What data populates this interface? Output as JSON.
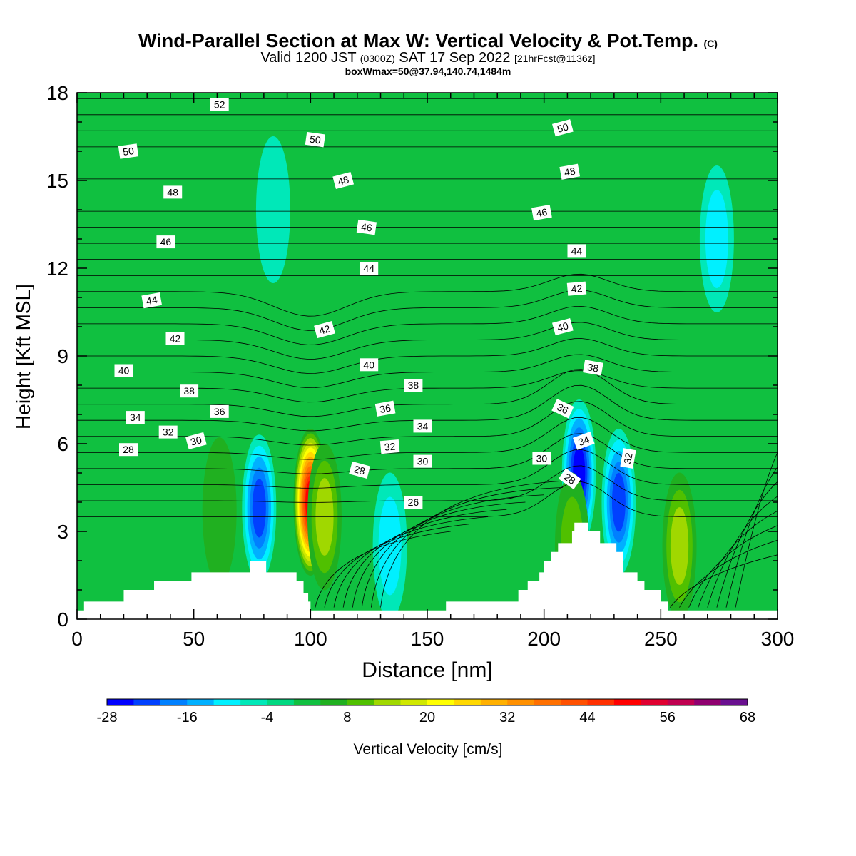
{
  "title": {
    "main": "Wind-Parallel Section at Max W: Vertical Velocity & Pot.Temp.",
    "copyright": "(C)",
    "valid_prefix": "Valid 1200 JST",
    "valid_utc": "(0300Z)",
    "valid_date": "SAT 17 Sep 2022",
    "forecast": "[21hrFcst@1136z]",
    "box_info": "boxWmax=50@37.94,140.74,1484m"
  },
  "chart_data": {
    "type": "contour",
    "xlabel": "Distance [nm]",
    "ylabel": "Height [Kft MSL]",
    "xlim": [
      0,
      300
    ],
    "ylim": [
      0,
      18
    ],
    "x_ticks": [
      0,
      50,
      100,
      150,
      200,
      250,
      300
    ],
    "y_ticks": [
      0,
      3,
      6,
      9,
      12,
      15,
      18
    ],
    "colorbar": {
      "label": "Vertical Velocity [cm/s]",
      "tick_labels": [
        "-28",
        "-16",
        "-4",
        "8",
        "20",
        "32",
        "44",
        "56",
        "68"
      ],
      "levels": [
        -28,
        -24,
        -20,
        -16,
        -12,
        -8,
        -4,
        0,
        4,
        8,
        12,
        16,
        20,
        24,
        28,
        32,
        36,
        40,
        44,
        48,
        52,
        56,
        60,
        64,
        68
      ],
      "colors": [
        "#0000ff",
        "#0040ff",
        "#0080ff",
        "#00b0ff",
        "#00f0ff",
        "#00e8b8",
        "#00d880",
        "#10c040",
        "#20b020",
        "#50c000",
        "#a0d800",
        "#d0e800",
        "#ffff00",
        "#ffd800",
        "#ffb000",
        "#ff9000",
        "#ff7000",
        "#ff5000",
        "#ff3000",
        "#ff0000",
        "#e00030",
        "#c00050",
        "#900070",
        "#6a1090"
      ]
    },
    "background_velocity_cm_s": 0,
    "velocity_features": [
      {
        "x": 78,
        "y": 3.8,
        "w": -20
      },
      {
        "x": 100,
        "y": 4.0,
        "w": 50
      },
      {
        "x": 106,
        "y": 3.5,
        "w": 12
      },
      {
        "x": 61,
        "y": 3.7,
        "w": 6
      },
      {
        "x": 134,
        "y": 2.5,
        "w": -8
      },
      {
        "x": 215,
        "y": 5.0,
        "w": -24
      },
      {
        "x": 232,
        "y": 4.0,
        "w": -20
      },
      {
        "x": 212,
        "y": 2.5,
        "w": 8
      },
      {
        "x": 258,
        "y": 2.5,
        "w": 12
      },
      {
        "x": 274,
        "y": 13.0,
        "w": -8
      },
      {
        "x": 84,
        "y": 14.0,
        "w": -6
      }
    ],
    "terrain_kft": [
      {
        "x": 0,
        "h": 0.3
      },
      {
        "x": 3,
        "h": 0.6
      },
      {
        "x": 19,
        "h": 0.6
      },
      {
        "x": 20,
        "h": 1.0
      },
      {
        "x": 32,
        "h": 1.0
      },
      {
        "x": 33,
        "h": 1.3
      },
      {
        "x": 48,
        "h": 1.3
      },
      {
        "x": 49,
        "h": 1.6
      },
      {
        "x": 73,
        "h": 1.6
      },
      {
        "x": 74,
        "h": 2.0
      },
      {
        "x": 80,
        "h": 2.0
      },
      {
        "x": 81,
        "h": 1.6
      },
      {
        "x": 93,
        "h": 1.6
      },
      {
        "x": 94,
        "h": 1.3
      },
      {
        "x": 97,
        "h": 0.9
      },
      {
        "x": 99,
        "h": 0.6
      },
      {
        "x": 100,
        "h": 0.3
      },
      {
        "x": 157,
        "h": 0.3
      },
      {
        "x": 158,
        "h": 0.6
      },
      {
        "x": 188,
        "h": 0.6
      },
      {
        "x": 189,
        "h": 1.0
      },
      {
        "x": 192,
        "h": 1.0
      },
      {
        "x": 193,
        "h": 1.3
      },
      {
        "x": 198,
        "h": 1.6
      },
      {
        "x": 200,
        "h": 2.0
      },
      {
        "x": 203,
        "h": 2.3
      },
      {
        "x": 206,
        "h": 2.6
      },
      {
        "x": 212,
        "h": 3.0
      },
      {
        "x": 213,
        "h": 3.3
      },
      {
        "x": 218,
        "h": 3.3
      },
      {
        "x": 219,
        "h": 3.0
      },
      {
        "x": 224,
        "h": 2.6
      },
      {
        "x": 230,
        "h": 2.6
      },
      {
        "x": 231,
        "h": 2.3
      },
      {
        "x": 234,
        "h": 1.6
      },
      {
        "x": 240,
        "h": 1.3
      },
      {
        "x": 243,
        "h": 1.0
      },
      {
        "x": 250,
        "h": 0.6
      },
      {
        "x": 253,
        "h": 0.3
      },
      {
        "x": 300,
        "h": 0.3
      }
    ],
    "theta_contour_labels": [
      {
        "v": 52,
        "x": 61,
        "y": 17.6,
        "a": 0
      },
      {
        "v": 50,
        "x": 22,
        "y": 16.0,
        "a": -8
      },
      {
        "v": 50,
        "x": 102,
        "y": 16.4,
        "a": 8
      },
      {
        "v": 50,
        "x": 208,
        "y": 16.8,
        "a": -15
      },
      {
        "v": 48,
        "x": 41,
        "y": 14.6,
        "a": 0
      },
      {
        "v": 48,
        "x": 114,
        "y": 15.0,
        "a": -15
      },
      {
        "v": 48,
        "x": 211,
        "y": 15.3,
        "a": -10
      },
      {
        "v": 46,
        "x": 38,
        "y": 12.9,
        "a": 0
      },
      {
        "v": 46,
        "x": 124,
        "y": 13.4,
        "a": 8
      },
      {
        "v": 46,
        "x": 199,
        "y": 13.9,
        "a": -10
      },
      {
        "v": 44,
        "x": 32,
        "y": 10.9,
        "a": -10
      },
      {
        "v": 44,
        "x": 125,
        "y": 12.0,
        "a": 0
      },
      {
        "v": 44,
        "x": 214,
        "y": 12.6,
        "a": 0
      },
      {
        "v": 42,
        "x": 42,
        "y": 9.6,
        "a": 0
      },
      {
        "v": 42,
        "x": 106,
        "y": 9.9,
        "a": -15
      },
      {
        "v": 42,
        "x": 214,
        "y": 11.3,
        "a": -5
      },
      {
        "v": 40,
        "x": 20,
        "y": 8.5,
        "a": 0
      },
      {
        "v": 40,
        "x": 125,
        "y": 8.7,
        "a": 0
      },
      {
        "v": 40,
        "x": 208,
        "y": 10.0,
        "a": -15
      },
      {
        "v": 38,
        "x": 48,
        "y": 7.8,
        "a": 0
      },
      {
        "v": 38,
        "x": 144,
        "y": 8.0,
        "a": 0
      },
      {
        "v": 38,
        "x": 221,
        "y": 8.6,
        "a": 10
      },
      {
        "v": 36,
        "x": 61,
        "y": 7.1,
        "a": 0
      },
      {
        "v": 36,
        "x": 132,
        "y": 7.2,
        "a": -10
      },
      {
        "v": 36,
        "x": 208,
        "y": 7.2,
        "a": 25
      },
      {
        "v": 34,
        "x": 25,
        "y": 6.9,
        "a": 0
      },
      {
        "v": 34,
        "x": 148,
        "y": 6.6,
        "a": 0
      },
      {
        "v": 34,
        "x": 217,
        "y": 6.1,
        "a": -20
      },
      {
        "v": 32,
        "x": 39,
        "y": 6.4,
        "a": 0
      },
      {
        "v": 32,
        "x": 134,
        "y": 5.9,
        "a": -5
      },
      {
        "v": 32,
        "x": 236,
        "y": 5.5,
        "a": -80
      },
      {
        "v": 30,
        "x": 51,
        "y": 6.1,
        "a": -15
      },
      {
        "v": 30,
        "x": 148,
        "y": 5.4,
        "a": 0
      },
      {
        "v": 30,
        "x": 199,
        "y": 5.5,
        "a": 0
      },
      {
        "v": 28,
        "x": 22,
        "y": 5.8,
        "a": 0
      },
      {
        "v": 28,
        "x": 121,
        "y": 5.1,
        "a": 15
      },
      {
        "v": 28,
        "x": 211,
        "y": 4.8,
        "a": 35
      },
      {
        "v": 26,
        "x": 144,
        "y": 4.0,
        "a": 0
      }
    ]
  }
}
